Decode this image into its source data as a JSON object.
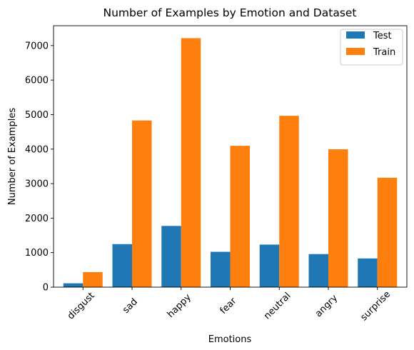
{
  "chart_data": {
    "type": "bar",
    "title": "Number of Examples by Emotion and Dataset",
    "xlabel": "Emotions",
    "ylabel": "Number of Examples",
    "categories": [
      "disgust",
      "sad",
      "happy",
      "fear",
      "neutral",
      "angry",
      "surprise"
    ],
    "series": [
      {
        "name": "Test",
        "color": "#1f77b4",
        "values": [
          111,
          1247,
          1774,
          1024,
          1233,
          958,
          831
        ]
      },
      {
        "name": "Train",
        "color": "#ff7f0e",
        "values": [
          436,
          4830,
          7215,
          4097,
          4965,
          3995,
          3171
        ]
      }
    ],
    "ylim": [
      0,
      7576
    ],
    "yticks": [
      0,
      1000,
      2000,
      3000,
      4000,
      5000,
      6000,
      7000
    ],
    "grid": false,
    "legend_position": "top-right"
  }
}
